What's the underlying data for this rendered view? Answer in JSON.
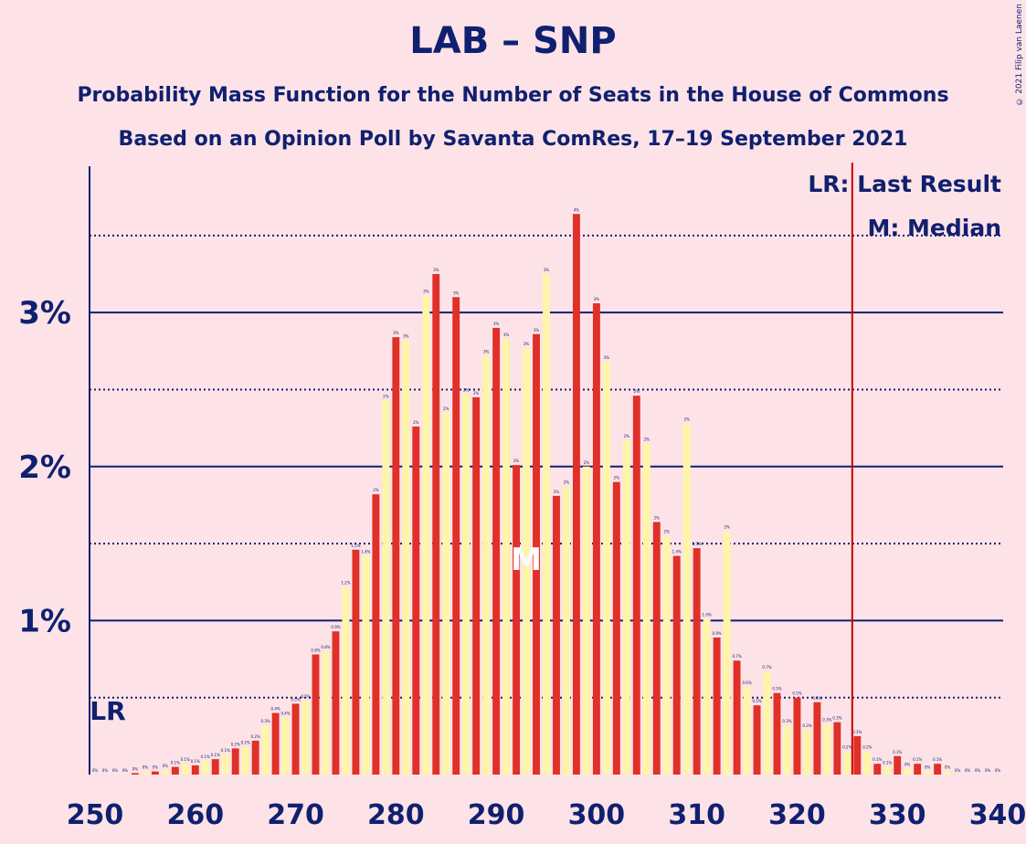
{
  "title": "LAB – SNP",
  "subtitle1": "Probability Mass Function for the Number of Seats in the House of Commons",
  "subtitle2": "Based on an Opinion Poll by Savanta ComRes, 17–19 September 2021",
  "copyright": "© 2021 Filip van Laenen",
  "colors": {
    "background": "#fde3e7",
    "text": "#102070",
    "bar_primary": "#e03028",
    "bar_secondary": "#fff5a8",
    "last_result_line": "#cc0000"
  },
  "chart_data": {
    "type": "bar",
    "xlabel": "",
    "ylabel": "",
    "x_ticks": [
      250,
      260,
      270,
      280,
      290,
      300,
      310,
      320,
      330,
      340
    ],
    "xlim": [
      250,
      340
    ],
    "y_ticks": [
      {
        "value": 1,
        "label": "1%"
      },
      {
        "value": 2,
        "label": "2%"
      },
      {
        "value": 3,
        "label": "3%"
      }
    ],
    "y_dotted": [
      0.5,
      1.5,
      2.5,
      3.5
    ],
    "ylim": [
      0,
      3.95
    ],
    "legend": {
      "last_result": "LR: Last Result",
      "median": "M: Median",
      "placement": "top-right"
    },
    "last_result_seat": 326,
    "last_result_marker": "LR",
    "median_seat": 293,
    "median_marker": "M",
    "bars": [
      {
        "seat": 250,
        "value": 0.0,
        "label": "0%"
      },
      {
        "seat": 251,
        "value": 0.0,
        "label": "0%"
      },
      {
        "seat": 252,
        "value": 0.0,
        "label": "0%"
      },
      {
        "seat": 253,
        "value": 0.0,
        "label": "0%"
      },
      {
        "seat": 254,
        "value": 0.01,
        "label": "0%"
      },
      {
        "seat": 255,
        "value": 0.02,
        "label": "0%"
      },
      {
        "seat": 256,
        "value": 0.02,
        "label": "0%"
      },
      {
        "seat": 257,
        "value": 0.03,
        "label": "0%"
      },
      {
        "seat": 258,
        "value": 0.05,
        "label": "0.1%"
      },
      {
        "seat": 259,
        "value": 0.07,
        "label": "0.1%"
      },
      {
        "seat": 260,
        "value": 0.06,
        "label": "0.1%"
      },
      {
        "seat": 261,
        "value": 0.09,
        "label": "0.1%"
      },
      {
        "seat": 262,
        "value": 0.1,
        "label": "0.1%"
      },
      {
        "seat": 263,
        "value": 0.13,
        "label": "0.1%"
      },
      {
        "seat": 264,
        "value": 0.17,
        "label": "0.2%"
      },
      {
        "seat": 265,
        "value": 0.18,
        "label": "0.2%"
      },
      {
        "seat": 266,
        "value": 0.22,
        "label": "0.2%"
      },
      {
        "seat": 267,
        "value": 0.32,
        "label": "0.3%"
      },
      {
        "seat": 268,
        "value": 0.4,
        "label": "0.4%"
      },
      {
        "seat": 269,
        "value": 0.37,
        "label": "0.4%"
      },
      {
        "seat": 270,
        "value": 0.46,
        "label": "0.5%"
      },
      {
        "seat": 271,
        "value": 0.48,
        "label": "0.5%"
      },
      {
        "seat": 272,
        "value": 0.78,
        "label": "0.8%"
      },
      {
        "seat": 273,
        "value": 0.8,
        "label": "0.8%"
      },
      {
        "seat": 274,
        "value": 0.93,
        "label": "0.9%"
      },
      {
        "seat": 275,
        "value": 1.22,
        "label": "1.2%"
      },
      {
        "seat": 276,
        "value": 1.46,
        "label": "1.5%"
      },
      {
        "seat": 277,
        "value": 1.42,
        "label": "1.4%"
      },
      {
        "seat": 278,
        "value": 1.82,
        "label": "2%"
      },
      {
        "seat": 279,
        "value": 2.43,
        "label": "2%"
      },
      {
        "seat": 280,
        "value": 2.84,
        "label": "3%"
      },
      {
        "seat": 281,
        "value": 2.82,
        "label": "3%"
      },
      {
        "seat": 282,
        "value": 2.26,
        "label": "2%"
      },
      {
        "seat": 283,
        "value": 3.11,
        "label": "3%"
      },
      {
        "seat": 284,
        "value": 3.25,
        "label": "3%"
      },
      {
        "seat": 285,
        "value": 2.35,
        "label": "2%"
      },
      {
        "seat": 286,
        "value": 3.1,
        "label": "3%"
      },
      {
        "seat": 287,
        "value": 2.47,
        "label": "2%"
      },
      {
        "seat": 288,
        "value": 2.45,
        "label": "2%"
      },
      {
        "seat": 289,
        "value": 2.72,
        "label": "3%"
      },
      {
        "seat": 290,
        "value": 2.9,
        "label": "3%"
      },
      {
        "seat": 291,
        "value": 2.83,
        "label": "3%"
      },
      {
        "seat": 292,
        "value": 2.01,
        "label": "2%"
      },
      {
        "seat": 293,
        "value": 2.77,
        "label": "3%"
      },
      {
        "seat": 294,
        "value": 2.86,
        "label": "3%"
      },
      {
        "seat": 295,
        "value": 3.25,
        "label": "3%"
      },
      {
        "seat": 296,
        "value": 1.81,
        "label": "2%"
      },
      {
        "seat": 297,
        "value": 1.87,
        "label": "2%"
      },
      {
        "seat": 298,
        "value": 3.64,
        "label": "4%"
      },
      {
        "seat": 299,
        "value": 2.0,
        "label": "2%"
      },
      {
        "seat": 300,
        "value": 3.06,
        "label": "3%"
      },
      {
        "seat": 301,
        "value": 2.68,
        "label": "3%"
      },
      {
        "seat": 302,
        "value": 1.9,
        "label": "2%"
      },
      {
        "seat": 303,
        "value": 2.17,
        "label": "2%"
      },
      {
        "seat": 304,
        "value": 2.46,
        "label": "2%"
      },
      {
        "seat": 305,
        "value": 2.15,
        "label": "2%"
      },
      {
        "seat": 306,
        "value": 1.64,
        "label": "2%"
      },
      {
        "seat": 307,
        "value": 1.55,
        "label": "2%"
      },
      {
        "seat": 308,
        "value": 1.42,
        "label": "1.4%"
      },
      {
        "seat": 309,
        "value": 2.28,
        "label": "2%"
      },
      {
        "seat": 310,
        "value": 1.47,
        "label": "1.5%"
      },
      {
        "seat": 311,
        "value": 1.01,
        "label": "1.0%"
      },
      {
        "seat": 312,
        "value": 0.89,
        "label": "0.9%"
      },
      {
        "seat": 313,
        "value": 1.58,
        "label": "2%"
      },
      {
        "seat": 314,
        "value": 0.74,
        "label": "0.7%"
      },
      {
        "seat": 315,
        "value": 0.57,
        "label": "0.6%"
      },
      {
        "seat": 316,
        "value": 0.45,
        "label": "0.5%"
      },
      {
        "seat": 317,
        "value": 0.67,
        "label": "0.7%"
      },
      {
        "seat": 318,
        "value": 0.53,
        "label": "0.5%"
      },
      {
        "seat": 319,
        "value": 0.32,
        "label": "0.3%"
      },
      {
        "seat": 320,
        "value": 0.5,
        "label": "0.5%"
      },
      {
        "seat": 321,
        "value": 0.29,
        "label": "0.3%"
      },
      {
        "seat": 322,
        "value": 0.47,
        "label": "0.5%"
      },
      {
        "seat": 323,
        "value": 0.33,
        "label": "0.3%"
      },
      {
        "seat": 324,
        "value": 0.34,
        "label": "0.3%"
      },
      {
        "seat": 325,
        "value": 0.15,
        "label": "0.2%"
      },
      {
        "seat": 326,
        "value": 0.25,
        "label": "0.3%"
      },
      {
        "seat": 327,
        "value": 0.15,
        "label": "0.2%"
      },
      {
        "seat": 328,
        "value": 0.07,
        "label": "0.1%"
      },
      {
        "seat": 329,
        "value": 0.05,
        "label": "0.1%"
      },
      {
        "seat": 330,
        "value": 0.12,
        "label": "0.1%"
      },
      {
        "seat": 331,
        "value": 0.04,
        "label": "0%"
      },
      {
        "seat": 332,
        "value": 0.07,
        "label": "0.1%"
      },
      {
        "seat": 333,
        "value": 0.02,
        "label": "0%"
      },
      {
        "seat": 334,
        "value": 0.07,
        "label": "0.1%"
      },
      {
        "seat": 335,
        "value": 0.02,
        "label": "0%"
      },
      {
        "seat": 336,
        "value": 0.0,
        "label": "0%"
      },
      {
        "seat": 337,
        "value": 0.0,
        "label": "0%"
      },
      {
        "seat": 338,
        "value": 0.0,
        "label": "0%"
      },
      {
        "seat": 339,
        "value": 0.0,
        "label": "0%"
      },
      {
        "seat": 340,
        "value": 0.0,
        "label": "0%"
      }
    ]
  }
}
